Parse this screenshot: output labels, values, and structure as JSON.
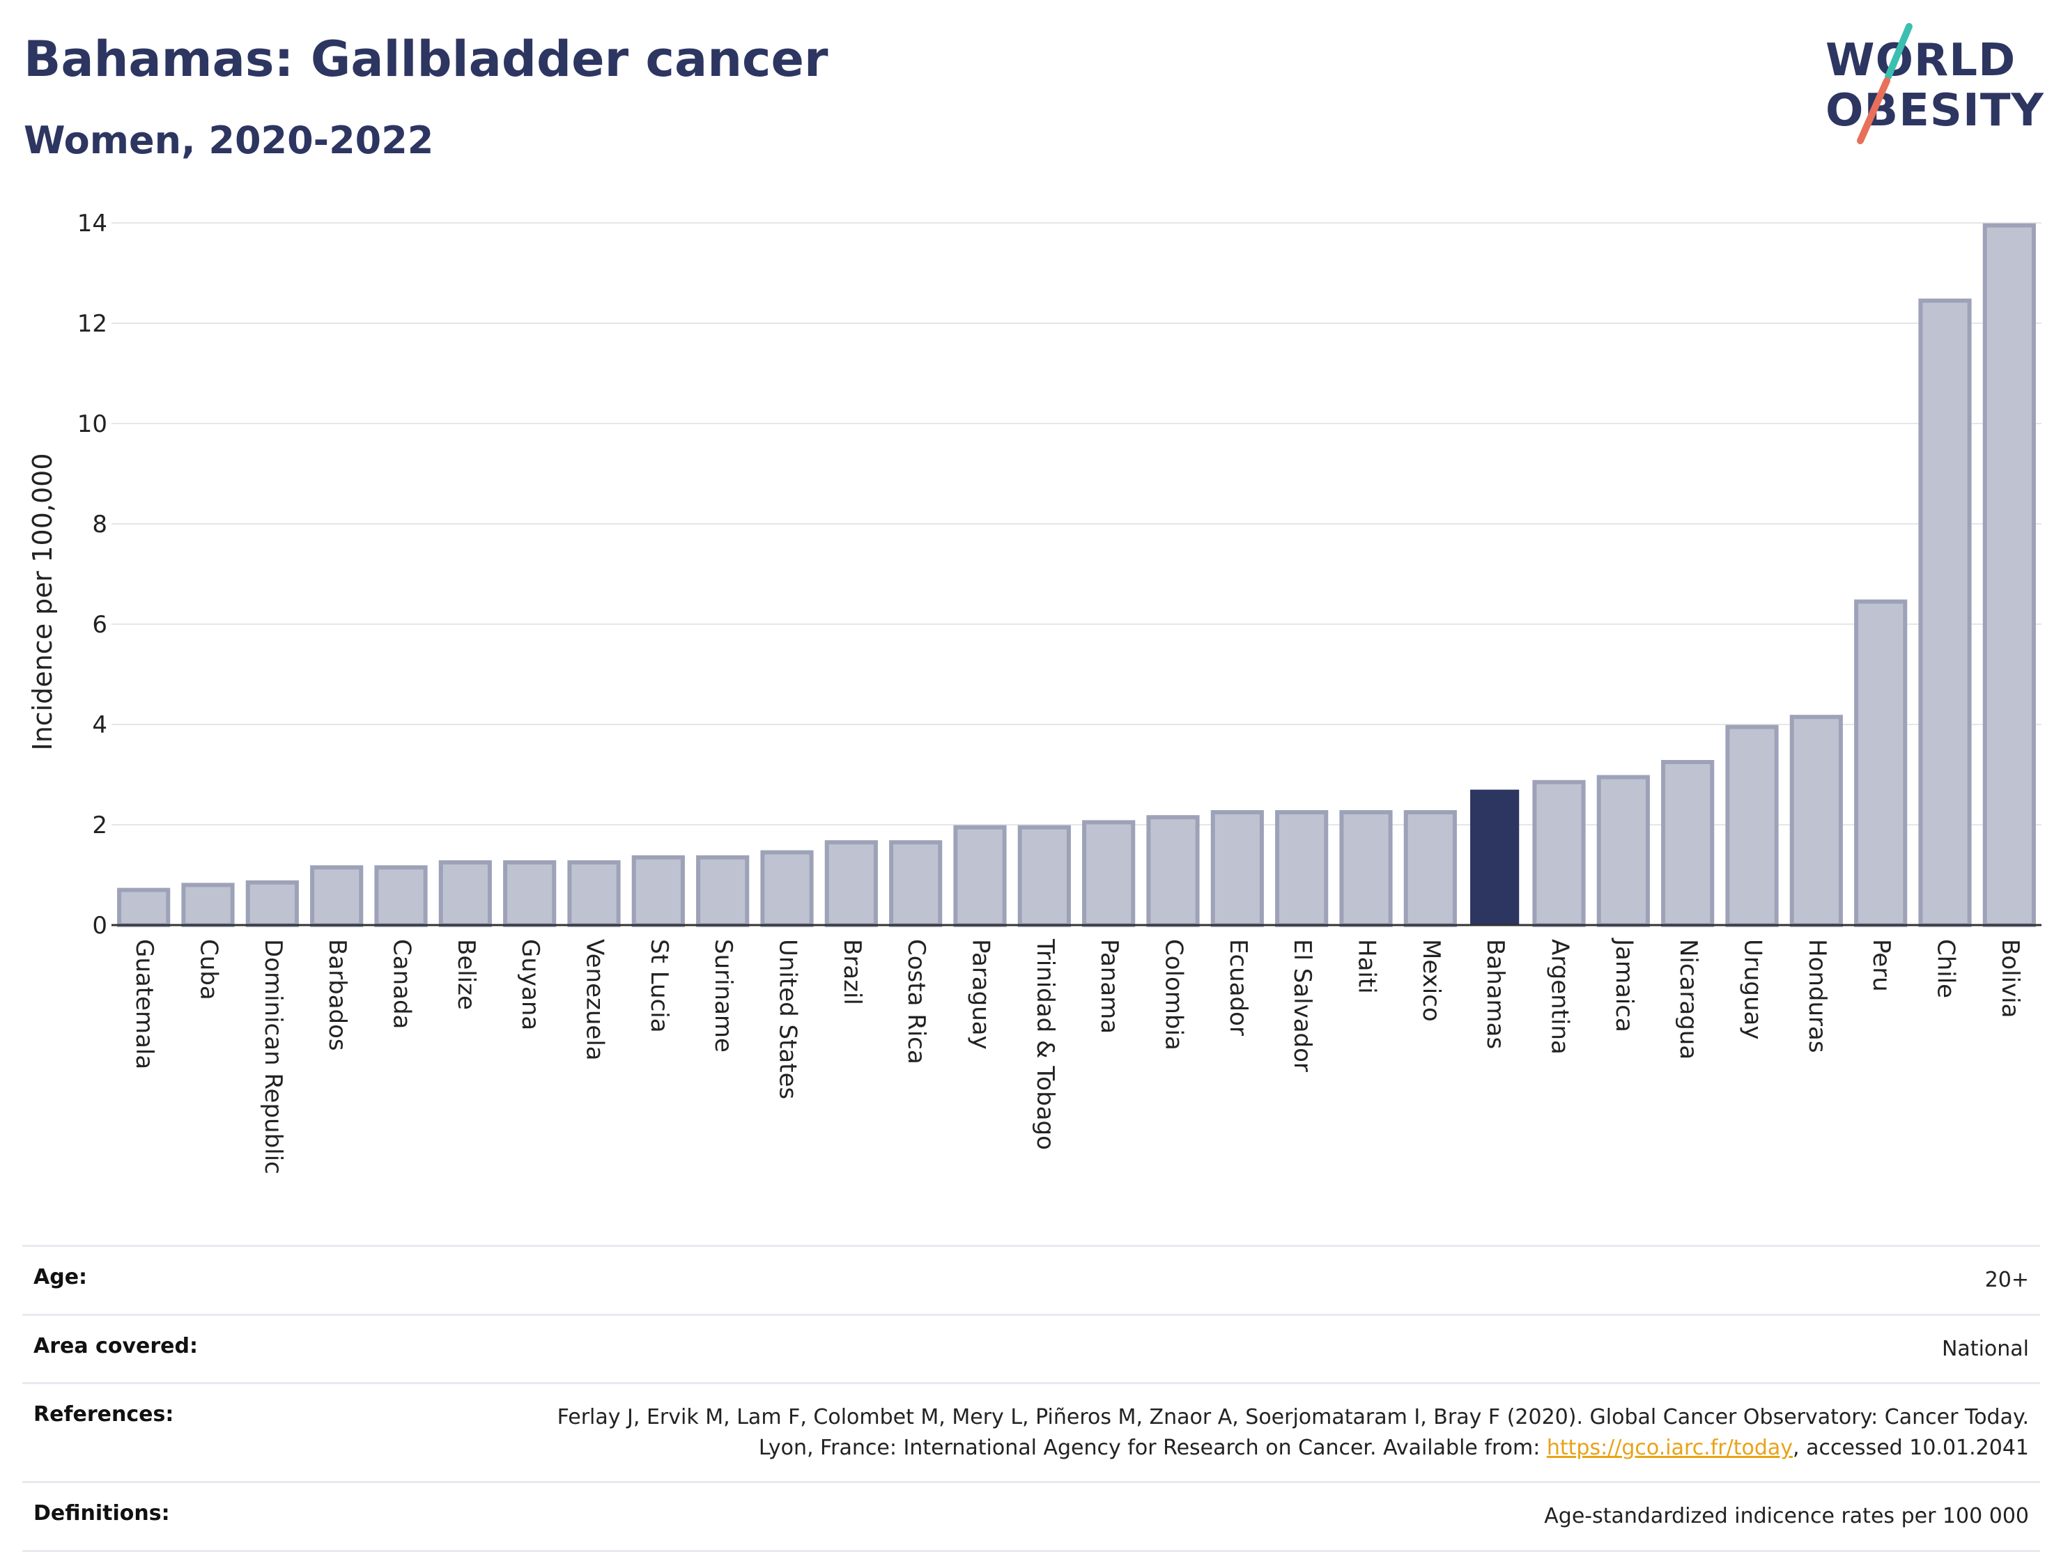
{
  "header": {
    "title": "Bahamas: Gallbladder cancer",
    "subtitle": "Women, 2020-2022"
  },
  "logo": {
    "line1": "WORLD",
    "line2": "OBESITY",
    "text_color": "#2d3561",
    "slash_colors": [
      "#3bbfb0",
      "#e8705a"
    ]
  },
  "chart_data": {
    "type": "bar",
    "title": "Bahamas: Gallbladder cancer",
    "subtitle": "Women, 2020-2022",
    "xlabel": "",
    "ylabel": "Incidence per 100,000",
    "ylim": [
      0,
      14
    ],
    "yticks": [
      0,
      2,
      4,
      6,
      8,
      10,
      12,
      14
    ],
    "grid": true,
    "highlight": "Bahamas",
    "colors": {
      "bar": "#bfc3d1",
      "bar_edge": "#9da2b8",
      "highlight": "#2d3561"
    },
    "categories": [
      "Guatemala",
      "Cuba",
      "Dominican Republic",
      "Barbados",
      "Canada",
      "Belize",
      "Guyana",
      "Venezuela",
      "St Lucia",
      "Suriname",
      "United States",
      "Brazil",
      "Costa Rica",
      "Paraguay",
      "Trinidad & Tobago",
      "Panama",
      "Colombia",
      "Ecuador",
      "El Salvador",
      "Haiti",
      "Mexico",
      "Bahamas",
      "Argentina",
      "Jamaica",
      "Nicaragua",
      "Uruguay",
      "Honduras",
      "Peru",
      "Chile",
      "Bolivia"
    ],
    "values": [
      0.7,
      0.8,
      0.85,
      1.15,
      1.15,
      1.25,
      1.25,
      1.25,
      1.35,
      1.35,
      1.45,
      1.65,
      1.65,
      1.95,
      1.95,
      2.05,
      2.15,
      2.25,
      2.25,
      2.25,
      2.25,
      2.7,
      2.85,
      2.95,
      3.25,
      3.95,
      4.15,
      6.45,
      12.45,
      13.95
    ]
  },
  "info": {
    "age_label": "Age:",
    "age_value": "20+",
    "area_label": "Area covered:",
    "area_value": "National",
    "references_label": "References:",
    "references_text_1": "Ferlay J, Ervik M, Lam F, Colombet M, Mery L, Piñeros M, Znaor A, Soerjomataram I, Bray F (2020). Global Cancer Observatory: Cancer Today. Lyon, France: International Agency for Research on Cancer. Available from: ",
    "references_link": "https://gco.iarc.fr/today",
    "references_text_2": ", accessed 10.01.2041",
    "definitions_label": "Definitions:",
    "definitions_value": "Age-standardized indicence rates per 100 000"
  }
}
